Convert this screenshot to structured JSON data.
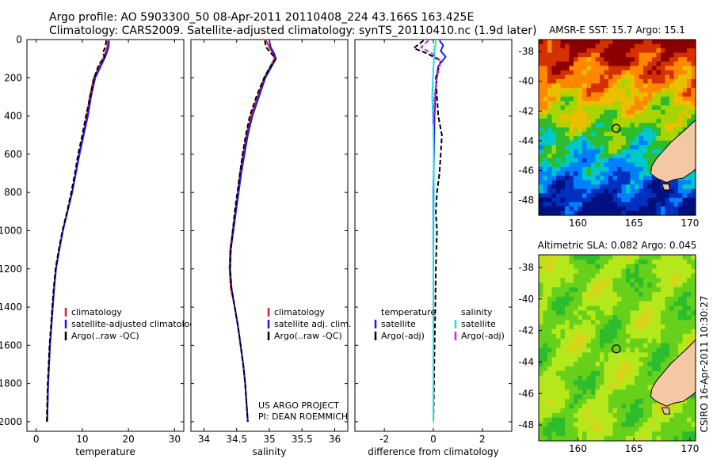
{
  "header": {
    "line1": "Argo profile: AO 5903300_50 08-Apr-2011 20110408_224 43.166S 163.425E",
    "line2": "Climatology: CARS2009. Satellite-adjusted climatology: synTS_20110410.nc (1.9d later)"
  },
  "colors": {
    "climatology": "#dd2222",
    "satellite": "#1a1aee",
    "argo": "#000000",
    "sat_salinity": "#22e0e0",
    "argo_salinity": "#dd22dd",
    "land": "#f5c8a4"
  },
  "credits": {
    "project": "US ARGO PROJECT",
    "pi": "PI: DEAN ROEMMICH",
    "stamp": "CSIRO 16-Apr-2011 10:30:27"
  },
  "chart_data": [
    {
      "id": "temperature",
      "type": "line",
      "xlabel": "temperature",
      "ylabel": "",
      "xlim": [
        -2,
        32
      ],
      "ylim": [
        2050,
        0
      ],
      "xticks": [
        0,
        10,
        20,
        30
      ],
      "yticks": [
        0,
        200,
        400,
        600,
        800,
        1000,
        1200,
        1400,
        1600,
        1800,
        2000
      ],
      "legend": [
        "climatology",
        "satellite-adjusted climatology",
        "Argo(..raw -QC)"
      ],
      "series": [
        {
          "name": "climatology",
          "color": "#dd2222",
          "points": [
            [
              15.6,
              5
            ],
            [
              15.4,
              40
            ],
            [
              15.0,
              70
            ],
            [
              14.5,
              100
            ],
            [
              13.5,
              150
            ],
            [
              12.5,
              200
            ],
            [
              11.6,
              300
            ],
            [
              11.0,
              400
            ],
            [
              10.2,
              500
            ],
            [
              9.3,
              600
            ],
            [
              8.6,
              700
            ],
            [
              7.8,
              800
            ],
            [
              6.8,
              900
            ],
            [
              5.8,
              1000
            ],
            [
              5.0,
              1100
            ],
            [
              4.3,
              1200
            ],
            [
              3.9,
              1300
            ],
            [
              3.6,
              1400
            ],
            [
              3.3,
              1500
            ],
            [
              3.0,
              1600
            ],
            [
              2.8,
              1700
            ],
            [
              2.6,
              1800
            ],
            [
              2.5,
              1900
            ],
            [
              2.4,
              2000
            ]
          ]
        },
        {
          "name": "satellite-adjusted climatology",
          "color": "#1a1aee",
          "points": [
            [
              15.8,
              5
            ],
            [
              15.7,
              40
            ],
            [
              15.3,
              70
            ],
            [
              14.8,
              100
            ],
            [
              13.8,
              150
            ],
            [
              12.8,
              200
            ],
            [
              11.9,
              300
            ],
            [
              11.2,
              400
            ],
            [
              10.3,
              500
            ],
            [
              9.4,
              600
            ],
            [
              8.6,
              700
            ],
            [
              7.8,
              800
            ],
            [
              6.8,
              900
            ],
            [
              5.8,
              1000
            ],
            [
              5.0,
              1100
            ],
            [
              4.3,
              1200
            ],
            [
              3.9,
              1300
            ],
            [
              3.6,
              1400
            ],
            [
              3.3,
              1500
            ],
            [
              3.0,
              1600
            ],
            [
              2.8,
              1700
            ],
            [
              2.6,
              1800
            ],
            [
              2.5,
              1900
            ],
            [
              2.4,
              2000
            ]
          ]
        },
        {
          "name": "Argo(..raw -QC)",
          "color": "#000000",
          "dashed": true,
          "points": [
            [
              15.2,
              5
            ],
            [
              15.0,
              40
            ],
            [
              14.4,
              70
            ],
            [
              14.9,
              90
            ],
            [
              13.6,
              130
            ],
            [
              12.6,
              200
            ],
            [
              11.7,
              300
            ],
            [
              10.8,
              400
            ],
            [
              10.0,
              500
            ],
            [
              9.1,
              600
            ],
            [
              8.4,
              700
            ],
            [
              7.6,
              800
            ],
            [
              6.7,
              900
            ],
            [
              5.7,
              1000
            ],
            [
              4.9,
              1100
            ],
            [
              4.2,
              1200
            ],
            [
              3.8,
              1300
            ],
            [
              3.5,
              1400
            ],
            [
              3.2,
              1500
            ],
            [
              2.9,
              1600
            ],
            [
              2.7,
              1700
            ],
            [
              2.5,
              1800
            ],
            [
              2.4,
              1900
            ],
            [
              2.3,
              2000
            ]
          ]
        }
      ]
    },
    {
      "id": "salinity",
      "type": "line",
      "xlabel": "salinity",
      "ylabel": "",
      "xlim": [
        33.8,
        36.2
      ],
      "ylim": [
        2050,
        0
      ],
      "xticks": [
        34,
        34.5,
        35,
        35.5,
        36
      ],
      "yticks": [
        0,
        200,
        400,
        600,
        800,
        1000,
        1200,
        1400,
        1600,
        1800,
        2000
      ],
      "legend": [
        "climatology",
        "satellite adj. clim.",
        "Argo(..raw -QC)"
      ],
      "series": [
        {
          "name": "climatology",
          "color": "#dd2222",
          "points": [
            [
              34.95,
              5
            ],
            [
              35.0,
              40
            ],
            [
              35.05,
              70
            ],
            [
              35.08,
              100
            ],
            [
              35.0,
              150
            ],
            [
              34.92,
              200
            ],
            [
              34.82,
              300
            ],
            [
              34.72,
              400
            ],
            [
              34.65,
              500
            ],
            [
              34.6,
              600
            ],
            [
              34.55,
              700
            ],
            [
              34.52,
              800
            ],
            [
              34.48,
              900
            ],
            [
              34.44,
              1000
            ],
            [
              34.4,
              1100
            ],
            [
              34.39,
              1200
            ],
            [
              34.41,
              1300
            ],
            [
              34.47,
              1400
            ],
            [
              34.52,
              1500
            ],
            [
              34.56,
              1600
            ],
            [
              34.6,
              1700
            ],
            [
              34.63,
              1800
            ],
            [
              34.65,
              1900
            ],
            [
              34.67,
              2000
            ]
          ]
        },
        {
          "name": "satellite adj. clim.",
          "color": "#1a1aee",
          "points": [
            [
              35.0,
              5
            ],
            [
              35.02,
              40
            ],
            [
              35.07,
              70
            ],
            [
              35.1,
              100
            ],
            [
              35.02,
              150
            ],
            [
              34.94,
              200
            ],
            [
              34.84,
              300
            ],
            [
              34.74,
              400
            ],
            [
              34.67,
              500
            ],
            [
              34.62,
              600
            ],
            [
              34.57,
              700
            ],
            [
              34.53,
              800
            ],
            [
              34.49,
              900
            ],
            [
              34.45,
              1000
            ],
            [
              34.41,
              1100
            ],
            [
              34.4,
              1200
            ],
            [
              34.42,
              1300
            ],
            [
              34.47,
              1400
            ],
            [
              34.52,
              1500
            ],
            [
              34.56,
              1600
            ],
            [
              34.6,
              1700
            ],
            [
              34.63,
              1800
            ],
            [
              34.65,
              1900
            ],
            [
              34.67,
              2000
            ]
          ]
        },
        {
          "name": "Argo(..raw -QC)",
          "color": "#000000",
          "dashed": true,
          "points": [
            [
              34.93,
              5
            ],
            [
              34.95,
              40
            ],
            [
              35.02,
              70
            ],
            [
              35.1,
              100
            ],
            [
              35.0,
              150
            ],
            [
              34.92,
              200
            ],
            [
              34.8,
              300
            ],
            [
              34.7,
              400
            ],
            [
              34.64,
              500
            ],
            [
              34.59,
              600
            ],
            [
              34.55,
              700
            ],
            [
              34.51,
              800
            ],
            [
              34.47,
              900
            ],
            [
              34.44,
              1000
            ],
            [
              34.41,
              1100
            ],
            [
              34.4,
              1200
            ],
            [
              34.42,
              1300
            ],
            [
              34.47,
              1400
            ],
            [
              34.52,
              1500
            ],
            [
              34.56,
              1600
            ],
            [
              34.6,
              1700
            ],
            [
              34.63,
              1800
            ],
            [
              34.65,
              1900
            ],
            [
              34.67,
              2000
            ]
          ]
        }
      ]
    },
    {
      "id": "difference",
      "type": "line",
      "xlabel": "difference from climatology",
      "ylabel": "",
      "xlim": [
        -3.2,
        3.2
      ],
      "ylim": [
        2050,
        0
      ],
      "xticks": [
        -2,
        0,
        2
      ],
      "yticks": [
        0,
        200,
        400,
        600,
        800,
        1000,
        1200,
        1400,
        1600,
        1800,
        2000
      ],
      "legend_headers": [
        "temperature",
        "salinity"
      ],
      "legend": [
        "satellite",
        "Argo(-adj)",
        "satellite",
        "Argo(-adj)"
      ],
      "series": [
        {
          "name": "temperature satellite",
          "color": "#1a1aee",
          "points": [
            [
              0.25,
              5
            ],
            [
              0.4,
              30
            ],
            [
              0.3,
              60
            ],
            [
              0.5,
              90
            ],
            [
              0.2,
              140
            ],
            [
              0.1,
              250
            ],
            [
              0.05,
              400
            ],
            [
              0.03,
              600
            ],
            [
              0.0,
              800
            ],
            [
              0.0,
              1200
            ],
            [
              0.0,
              1600
            ],
            [
              0.0,
              2000
            ]
          ]
        },
        {
          "name": "temperature Argo(-adj)",
          "color": "#000000",
          "dashed": true,
          "points": [
            [
              -0.4,
              5
            ],
            [
              -0.8,
              45
            ],
            [
              -0.3,
              70
            ],
            [
              0.3,
              110
            ],
            [
              0.1,
              200
            ],
            [
              0.15,
              300
            ],
            [
              0.2,
              400
            ],
            [
              0.35,
              500
            ],
            [
              0.3,
              600
            ],
            [
              0.25,
              700
            ],
            [
              0.15,
              800
            ],
            [
              0.1,
              900
            ],
            [
              0.15,
              1000
            ],
            [
              0.1,
              1200
            ],
            [
              0.08,
              1400
            ],
            [
              0.05,
              1600
            ],
            [
              0.03,
              1800
            ],
            [
              0.0,
              2000
            ]
          ]
        },
        {
          "name": "salinity satellite",
          "color": "#22e0e0",
          "points": [
            [
              0.1,
              5
            ],
            [
              0.05,
              60
            ],
            [
              0.0,
              150
            ],
            [
              -0.05,
              300
            ],
            [
              0.0,
              450
            ],
            [
              0.02,
              600
            ],
            [
              0.02,
              800
            ],
            [
              0.0,
              1200
            ],
            [
              0.0,
              1600
            ],
            [
              0.0,
              2000
            ]
          ]
        },
        {
          "name": "salinity Argo(-adj)",
          "color": "#dd22dd",
          "dashed": true,
          "points": [
            [
              -0.2,
              5
            ],
            [
              -0.5,
              40
            ],
            [
              -0.1,
              70
            ],
            [
              0.3,
              110
            ],
            [
              0.15,
              200
            ],
            [
              0.05,
              300
            ],
            [
              0.0,
              450
            ]
          ]
        }
      ]
    },
    {
      "id": "sst_map",
      "type": "heatmap",
      "title": "AMSR-E SST: 15.7 Argo: 15.1",
      "xlim": [
        156.5,
        170.5
      ],
      "ylim": [
        -49,
        -37.2
      ],
      "xticks": [
        160,
        165,
        170
      ],
      "yticks": [
        -38,
        -40,
        -42,
        -44,
        -46,
        -48
      ],
      "argo_position": [
        163.425,
        -43.166
      ],
      "colors": [
        "#8b0000",
        "#d43000",
        "#ff8800",
        "#e8c000",
        "#a8d400",
        "#2cbc2c",
        "#00c8c8",
        "#0080ff",
        "#0030c0",
        "#001080"
      ]
    },
    {
      "id": "sla_map",
      "type": "heatmap",
      "title": "Altimetric SLA: 0.082 Argo: 0.045",
      "xlim": [
        156.5,
        170.5
      ],
      "ylim": [
        -49,
        -37.2
      ],
      "xticks": [
        160,
        165,
        170
      ],
      "yticks": [
        -38,
        -40,
        -42,
        -44,
        -46,
        -48
      ],
      "argo_position": [
        163.425,
        -43.166
      ],
      "colors": [
        "#2cbc2c",
        "#66d01a",
        "#b4e81a",
        "#d8d41a"
      ]
    }
  ]
}
